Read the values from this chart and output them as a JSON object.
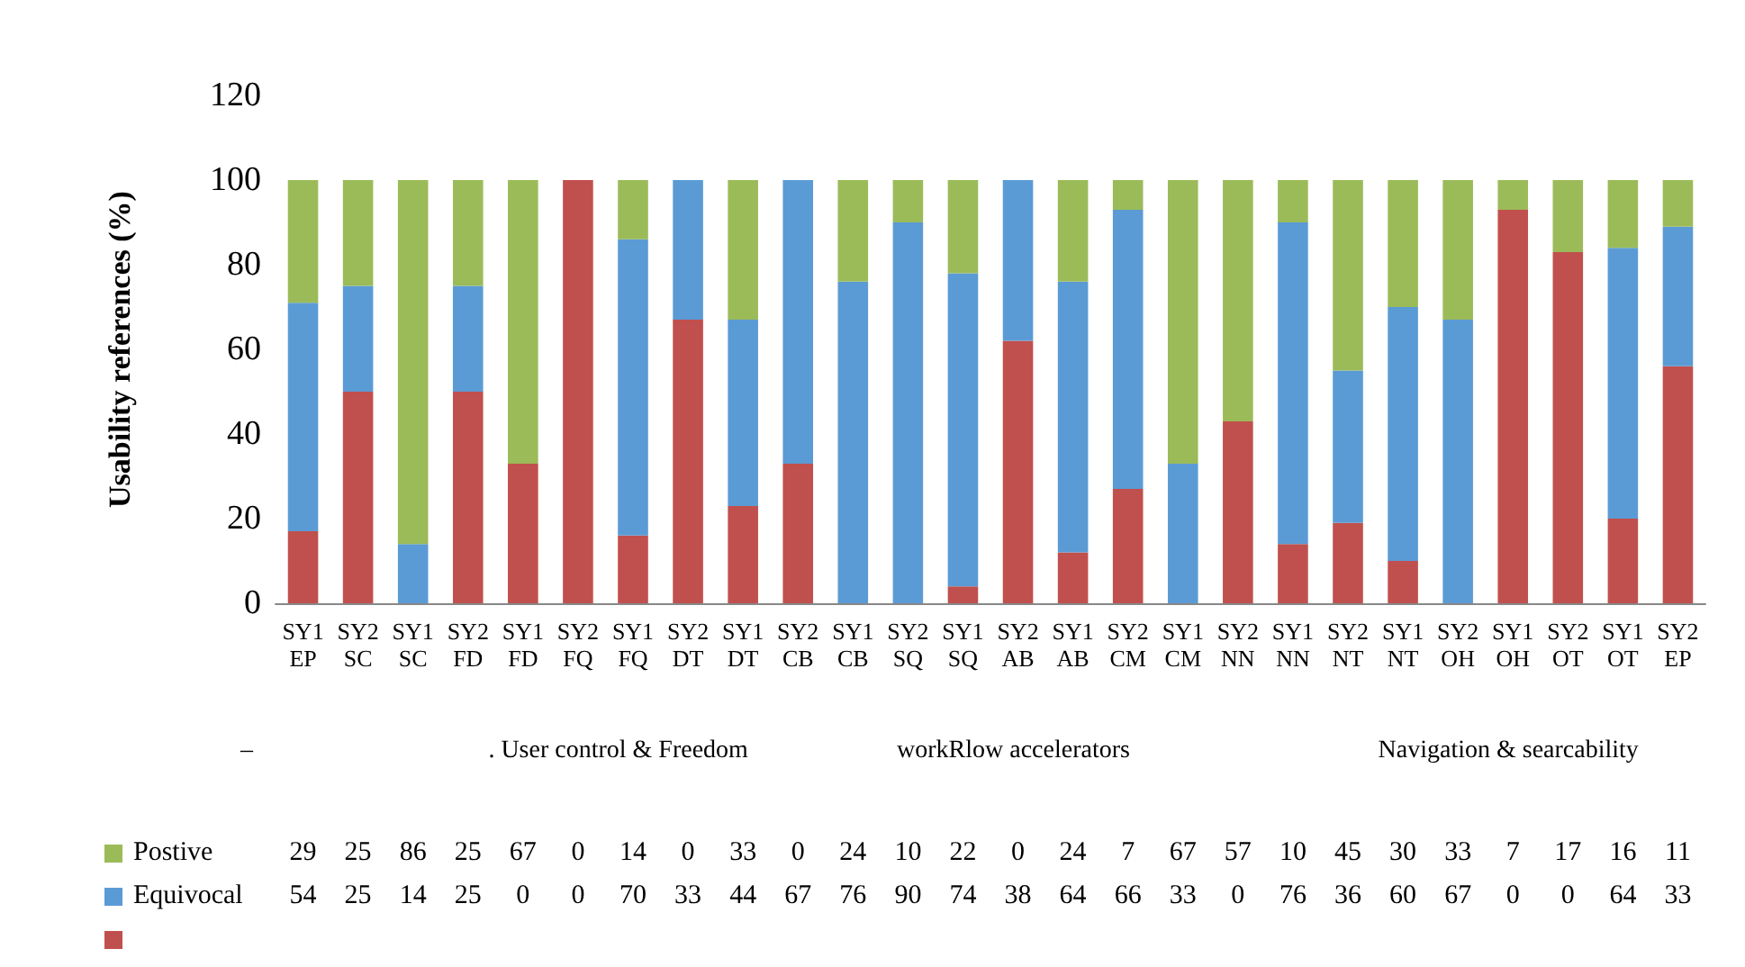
{
  "chart_data": {
    "type": "bar",
    "stacked": true,
    "ylabel": "Usability references (%)",
    "categories": [
      "SY1\nEP",
      "SY2\nSC",
      "SY1\nSC",
      "SY2\nFD",
      "SY1\nFD",
      "SY2\nFQ",
      "SY1\nFQ",
      "SY2\nDT",
      "SY1\nDT",
      "SY2\nCB",
      "SY1\nCB",
      "SY2\nSQ",
      "SY1\nSQ",
      "SY2\nAB",
      "SY1\nAB",
      "SY2\nCM",
      "SY1\nCM",
      "SY2\nNN",
      "SY1\nNN",
      "SY2\nNT",
      "SY1\nNT",
      "SY2\nOH",
      "SY1\nOH",
      "SY2\nOT",
      "SY1\nOT",
      "SY2\nEP"
    ],
    "series": [
      {
        "color": "#c0504d",
        "values": [
          17,
          50,
          0,
          50,
          33,
          100,
          16,
          67,
          23,
          33,
          0,
          0,
          4,
          62,
          12,
          27,
          0,
          43,
          14,
          19,
          10,
          0,
          93,
          83,
          20,
          56
        ]
      },
      {
        "name": "Equivocal",
        "color": "#5b9bd5",
        "values": [
          54,
          25,
          14,
          25,
          0,
          0,
          70,
          33,
          44,
          67,
          76,
          90,
          74,
          38,
          64,
          66,
          33,
          0,
          76,
          36,
          60,
          67,
          0,
          0,
          64,
          33
        ],
        "value_labels": [
          "54",
          "25",
          "14",
          "25",
          "0",
          "0",
          "70",
          "33",
          "44",
          "67",
          "76",
          "90",
          "74",
          "38",
          "64",
          "66",
          "33",
          "0",
          "76",
          "36",
          "60",
          "67",
          "0",
          "0",
          "64",
          "33"
        ]
      },
      {
        "name": "Postive",
        "color": "#9bbb59",
        "values": [
          29,
          25,
          86,
          25,
          67,
          0,
          14,
          0,
          33,
          0,
          24,
          10,
          22,
          0,
          24,
          7,
          67,
          57,
          10,
          45,
          30,
          33,
          7,
          17,
          16,
          11
        ],
        "value_labels": [
          "29",
          "25",
          "86",
          "25",
          "67",
          "0",
          "14",
          "0",
          "33",
          "0",
          "24",
          "10",
          "22",
          "0",
          "24",
          "7",
          "67",
          "57",
          "10",
          "45",
          "30",
          "33",
          "7",
          "17",
          "16",
          "11"
        ]
      }
    ],
    "ylim": [
      0,
      120
    ],
    "yticks": [
      0,
      20,
      40,
      60,
      80,
      100,
      120
    ],
    "grid": false,
    "legend": "bottom left",
    "annotations": [
      "–",
      ". User control & Freedom",
      "workRlow accelerators",
      "Navigation & searcability"
    ]
  }
}
